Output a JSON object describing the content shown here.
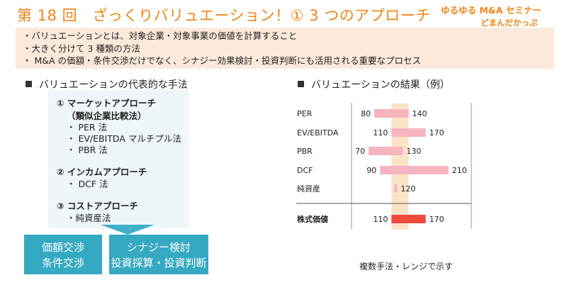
{
  "header": {
    "title": "第 18 回　ざっくりバリュエーション！① 3 つのアプローチ",
    "brand_line1": "ゆるゆる M&A セミナー",
    "brand_line2": "どまんだかっぷ"
  },
  "summary": [
    "・バリュエーションとは、対象企業・対象事業の価値を計算すること",
    "・大きく分けて 3 種類の方法",
    "・ M&A の価額・条件交渉だけでなく、シナジー効果検討・投資判断にも活用される重要なプロセス"
  ],
  "left": {
    "heading": "バリュエーションの代表的な手法",
    "market": {
      "title": "① マーケットアプローチ",
      "sub": "（類似企業比較法）",
      "items": [
        "・ PER 法",
        "・ EV/EBITDA マルチプル法",
        "・ PBR 法"
      ]
    },
    "income": {
      "title": "② インカムアプローチ",
      "items": [
        "・ DCF 法"
      ]
    },
    "cost": {
      "title": "③ コストアプローチ",
      "items": [
        "・純資産法"
      ]
    },
    "box1": [
      "価額交渉",
      "条件交渉"
    ],
    "box2": [
      "シナジー検討",
      "投資採算・投資判断"
    ]
  },
  "right": {
    "heading": "バリュエーションの結果（例）",
    "caption": "複数手法・レンジで示す"
  },
  "colors": {
    "accent": "#ef8518",
    "band": "#fbe3c8",
    "bar": "#f6b3c0",
    "result_bar": "#f04a3c",
    "box": "#35a9c2"
  },
  "chart_data": {
    "type": "bar",
    "orientation": "horizontal-range",
    "categories": [
      "PER",
      "EV/EBITDA",
      "PBR",
      "DCF",
      "純資産",
      "株式価値"
    ],
    "series": [
      {
        "values": [
          [
            80,
            140
          ],
          [
            110,
            170
          ],
          [
            70,
            130
          ],
          [
            90,
            210
          ],
          [
            115,
            120
          ],
          [
            110,
            170
          ]
        ]
      }
    ],
    "labels": [
      [
        "80",
        "140"
      ],
      [
        "110",
        "170"
      ],
      [
        "70",
        "130"
      ],
      [
        "90",
        "210"
      ],
      [
        "",
        "120"
      ],
      [
        "110",
        "170"
      ]
    ],
    "highlight_range": [
      110,
      140
    ],
    "xlim": [
      40,
      250
    ],
    "title": "",
    "xlabel": "",
    "ylabel": ""
  }
}
